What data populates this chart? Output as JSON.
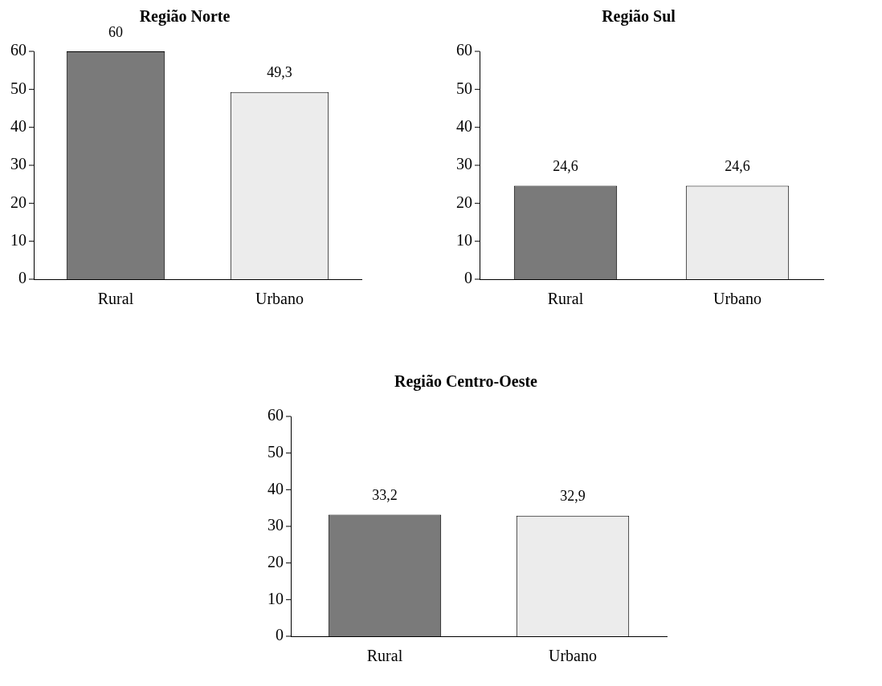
{
  "chart_data": [
    {
      "type": "bar",
      "title": "Região Norte",
      "categories": [
        "Rural",
        "Urbano"
      ],
      "values": [
        60,
        49.3
      ],
      "colors": [
        "#7a7a7a",
        "#ececec"
      ],
      "value_labels": [
        "60",
        "49,3"
      ],
      "ylim": [
        0,
        60
      ],
      "yticks": [
        0,
        10,
        20,
        30,
        40,
        50,
        60
      ],
      "grid": false,
      "legend": false
    },
    {
      "type": "bar",
      "title": "Região Sul",
      "categories": [
        "Rural",
        "Urbano"
      ],
      "values": [
        24.6,
        24.6
      ],
      "colors": [
        "#7a7a7a",
        "#ececec"
      ],
      "value_labels": [
        "24,6",
        "24,6"
      ],
      "ylim": [
        0,
        60
      ],
      "yticks": [
        0,
        10,
        20,
        30,
        40,
        50,
        60
      ],
      "grid": false,
      "legend": false
    },
    {
      "type": "bar",
      "title": "Região Centro-Oeste",
      "categories": [
        "Rural",
        "Urbano"
      ],
      "values": [
        33.2,
        32.9
      ],
      "colors": [
        "#7a7a7a",
        "#ececec"
      ],
      "value_labels": [
        "33,2",
        "32,9"
      ],
      "ylim": [
        0,
        60
      ],
      "yticks": [
        0,
        10,
        20,
        30,
        40,
        50,
        60
      ],
      "grid": false,
      "legend": false
    }
  ]
}
